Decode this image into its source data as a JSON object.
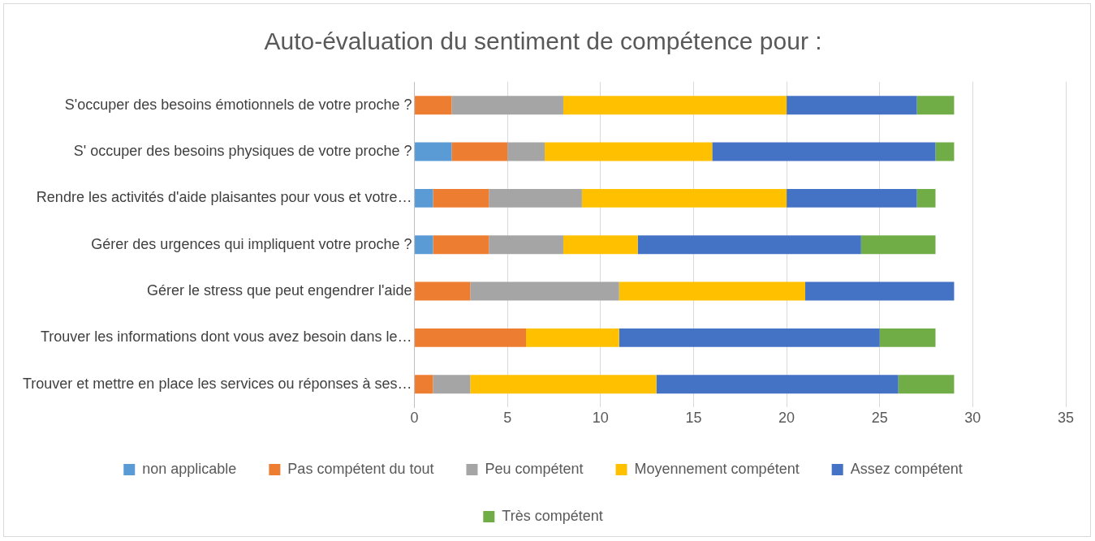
{
  "chart_data": {
    "type": "bar",
    "orientation": "horizontal",
    "stacked": true,
    "title": "Auto-évaluation du sentiment de compétence pour :",
    "categories": [
      "S'occuper des besoins émotionnels de votre proche ?",
      "S' occuper des besoins physiques de votre proche ?",
      "Rendre les activités d'aide plaisantes pour vous et votre…",
      "Gérer des urgences qui impliquent votre proche ?",
      "Gérer le stress que peut engendrer l'aide",
      "Trouver les informations dont vous avez besoin dans le…",
      "Trouver et mettre en place les services ou réponses à ses…"
    ],
    "series": [
      {
        "name": "non applicable",
        "color": "#5b9bd5",
        "values": [
          0,
          2,
          1,
          1,
          0,
          0,
          0
        ]
      },
      {
        "name": "Pas compétent du tout",
        "color": "#ed7d31",
        "values": [
          2,
          3,
          3,
          3,
          3,
          6,
          1
        ]
      },
      {
        "name": "Peu compétent",
        "color": "#a5a5a5",
        "values": [
          6,
          2,
          5,
          4,
          8,
          0,
          2
        ]
      },
      {
        "name": "Moyennement compétent",
        "color": "#ffc000",
        "values": [
          12,
          9,
          11,
          4,
          10,
          5,
          10
        ]
      },
      {
        "name": "Assez compétent",
        "color": "#4472c4",
        "values": [
          7,
          12,
          7,
          12,
          8,
          14,
          13
        ]
      },
      {
        "name": "Très compétent",
        "color": "#70ad47",
        "values": [
          2,
          1,
          1,
          4,
          0,
          3,
          3
        ]
      }
    ],
    "xlim": [
      0,
      35
    ],
    "xticks": [
      0,
      5,
      10,
      15,
      20,
      25,
      30,
      35
    ],
    "grid": "x",
    "legend": "bottom"
  }
}
